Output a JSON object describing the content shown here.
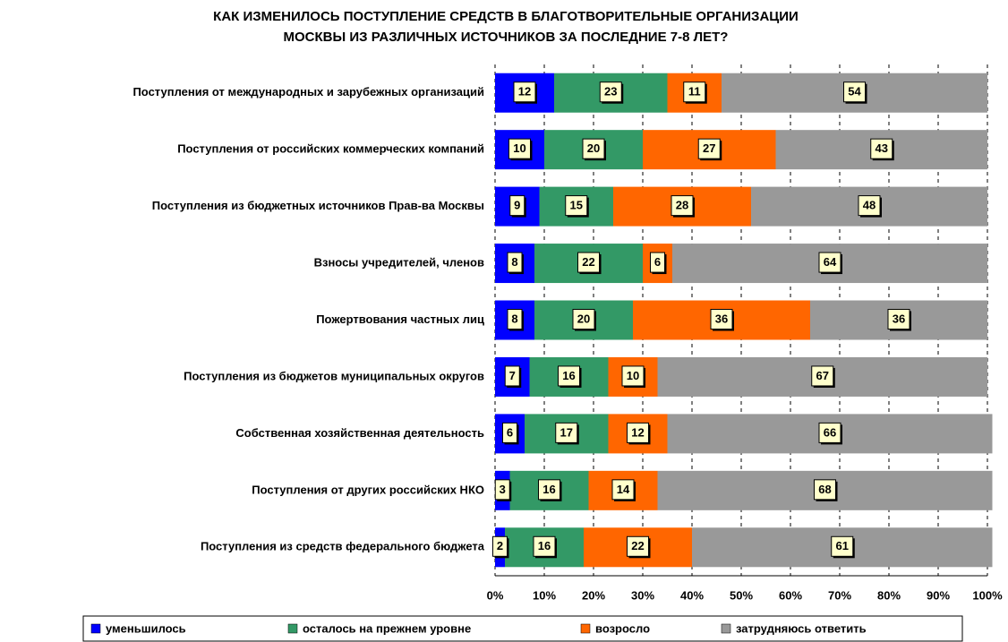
{
  "chart_data": {
    "type": "stacked_barh",
    "title": [
      "КАК ИЗМЕНИЛОСЬ ПОСТУПЛЕНИЕ СРЕДСТВ В БЛАГОТВОРИТЕЛЬНЫЕ ОРГАНИЗАЦИИ",
      "МОСКВЫ ИЗ РАЗЛИЧНЫХ ИСТОЧНИКОВ ЗА ПОСЛЕДНИЕ 7-8 ЛЕТ?"
    ],
    "categories": [
      "Поступления от международных и зарубежных организаций",
      "Поступления от российских коммерческих компаний",
      "Поступления из бюджетных источников Прав-ва Москвы",
      "Взносы учредителей, членов",
      "Пожертвования частных лиц",
      "Поступления из бюджетов муниципальных округов",
      "Собственная хозяйственная деятельность",
      "Поступления от других российских НКО",
      "Поступления из средств федерального бюджета"
    ],
    "series": [
      {
        "name": "уменьшилось",
        "color": "#0000ff",
        "values": [
          12,
          10,
          9,
          8,
          8,
          7,
          6,
          3,
          2
        ]
      },
      {
        "name": "осталось на прежнем уровне",
        "color": "#339966",
        "values": [
          23,
          20,
          15,
          22,
          20,
          16,
          17,
          16,
          16
        ]
      },
      {
        "name": "возросло",
        "color": "#ff6600",
        "values": [
          11,
          27,
          28,
          6,
          36,
          10,
          12,
          14,
          22
        ]
      },
      {
        "name": "затрудняюсь ответить",
        "color": "#999999",
        "values": [
          54,
          43,
          48,
          64,
          36,
          67,
          66,
          68,
          61
        ]
      }
    ],
    "xlim": [
      0,
      100
    ],
    "xticks": [
      {
        "value": 0,
        "label": "0%"
      },
      {
        "value": 10,
        "label": "10%"
      },
      {
        "value": 20,
        "label": "20%"
      },
      {
        "value": 30,
        "label": "30%"
      },
      {
        "value": 40,
        "label": "40%"
      },
      {
        "value": 50,
        "label": "50%"
      },
      {
        "value": 60,
        "label": "60%"
      },
      {
        "value": 70,
        "label": "70%"
      },
      {
        "value": 80,
        "label": "80%"
      },
      {
        "value": 90,
        "label": "90%"
      },
      {
        "value": 100,
        "label": "100%"
      }
    ],
    "grid": true,
    "legend": "bottom"
  }
}
